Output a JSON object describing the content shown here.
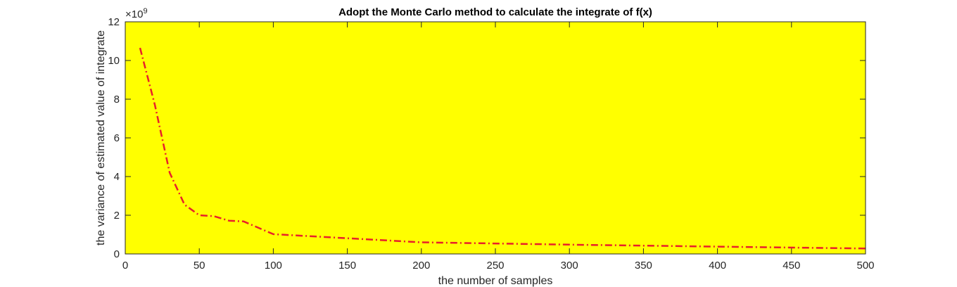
{
  "chart_data": {
    "type": "line",
    "title": "Adopt the Monte Carlo method to calculate the integrate of f(x)",
    "xlabel": "the number of samples",
    "ylabel": "the variance of estimated value of integrate",
    "y_exponent_label": "×10",
    "y_exponent_power": "9",
    "xlim": [
      0,
      500
    ],
    "ylim": [
      0,
      12
    ],
    "y_scale_factor": 1000000000,
    "xticks": [
      "0",
      "50",
      "100",
      "150",
      "200",
      "250",
      "300",
      "350",
      "400",
      "450",
      "500"
    ],
    "yticks": [
      "0",
      "2",
      "4",
      "6",
      "8",
      "10",
      "12"
    ],
    "xtick_values": [
      0,
      50,
      100,
      150,
      200,
      250,
      300,
      350,
      400,
      450,
      500
    ],
    "ytick_values": [
      0,
      2,
      4,
      6,
      8,
      10,
      12
    ],
    "grid": false,
    "plot_background": "#ffff00",
    "series": [
      {
        "color": "#e8202a",
        "line_style": "dash-dot",
        "x": [
          10,
          20,
          30,
          40,
          50,
          60,
          70,
          80,
          90,
          100,
          200,
          300,
          400,
          500
        ],
        "y": [
          10.65,
          7.7,
          4.2,
          2.55,
          2.0,
          1.95,
          1.72,
          1.68,
          1.35,
          1.02,
          0.6,
          0.48,
          0.38,
          0.28
        ]
      }
    ]
  }
}
